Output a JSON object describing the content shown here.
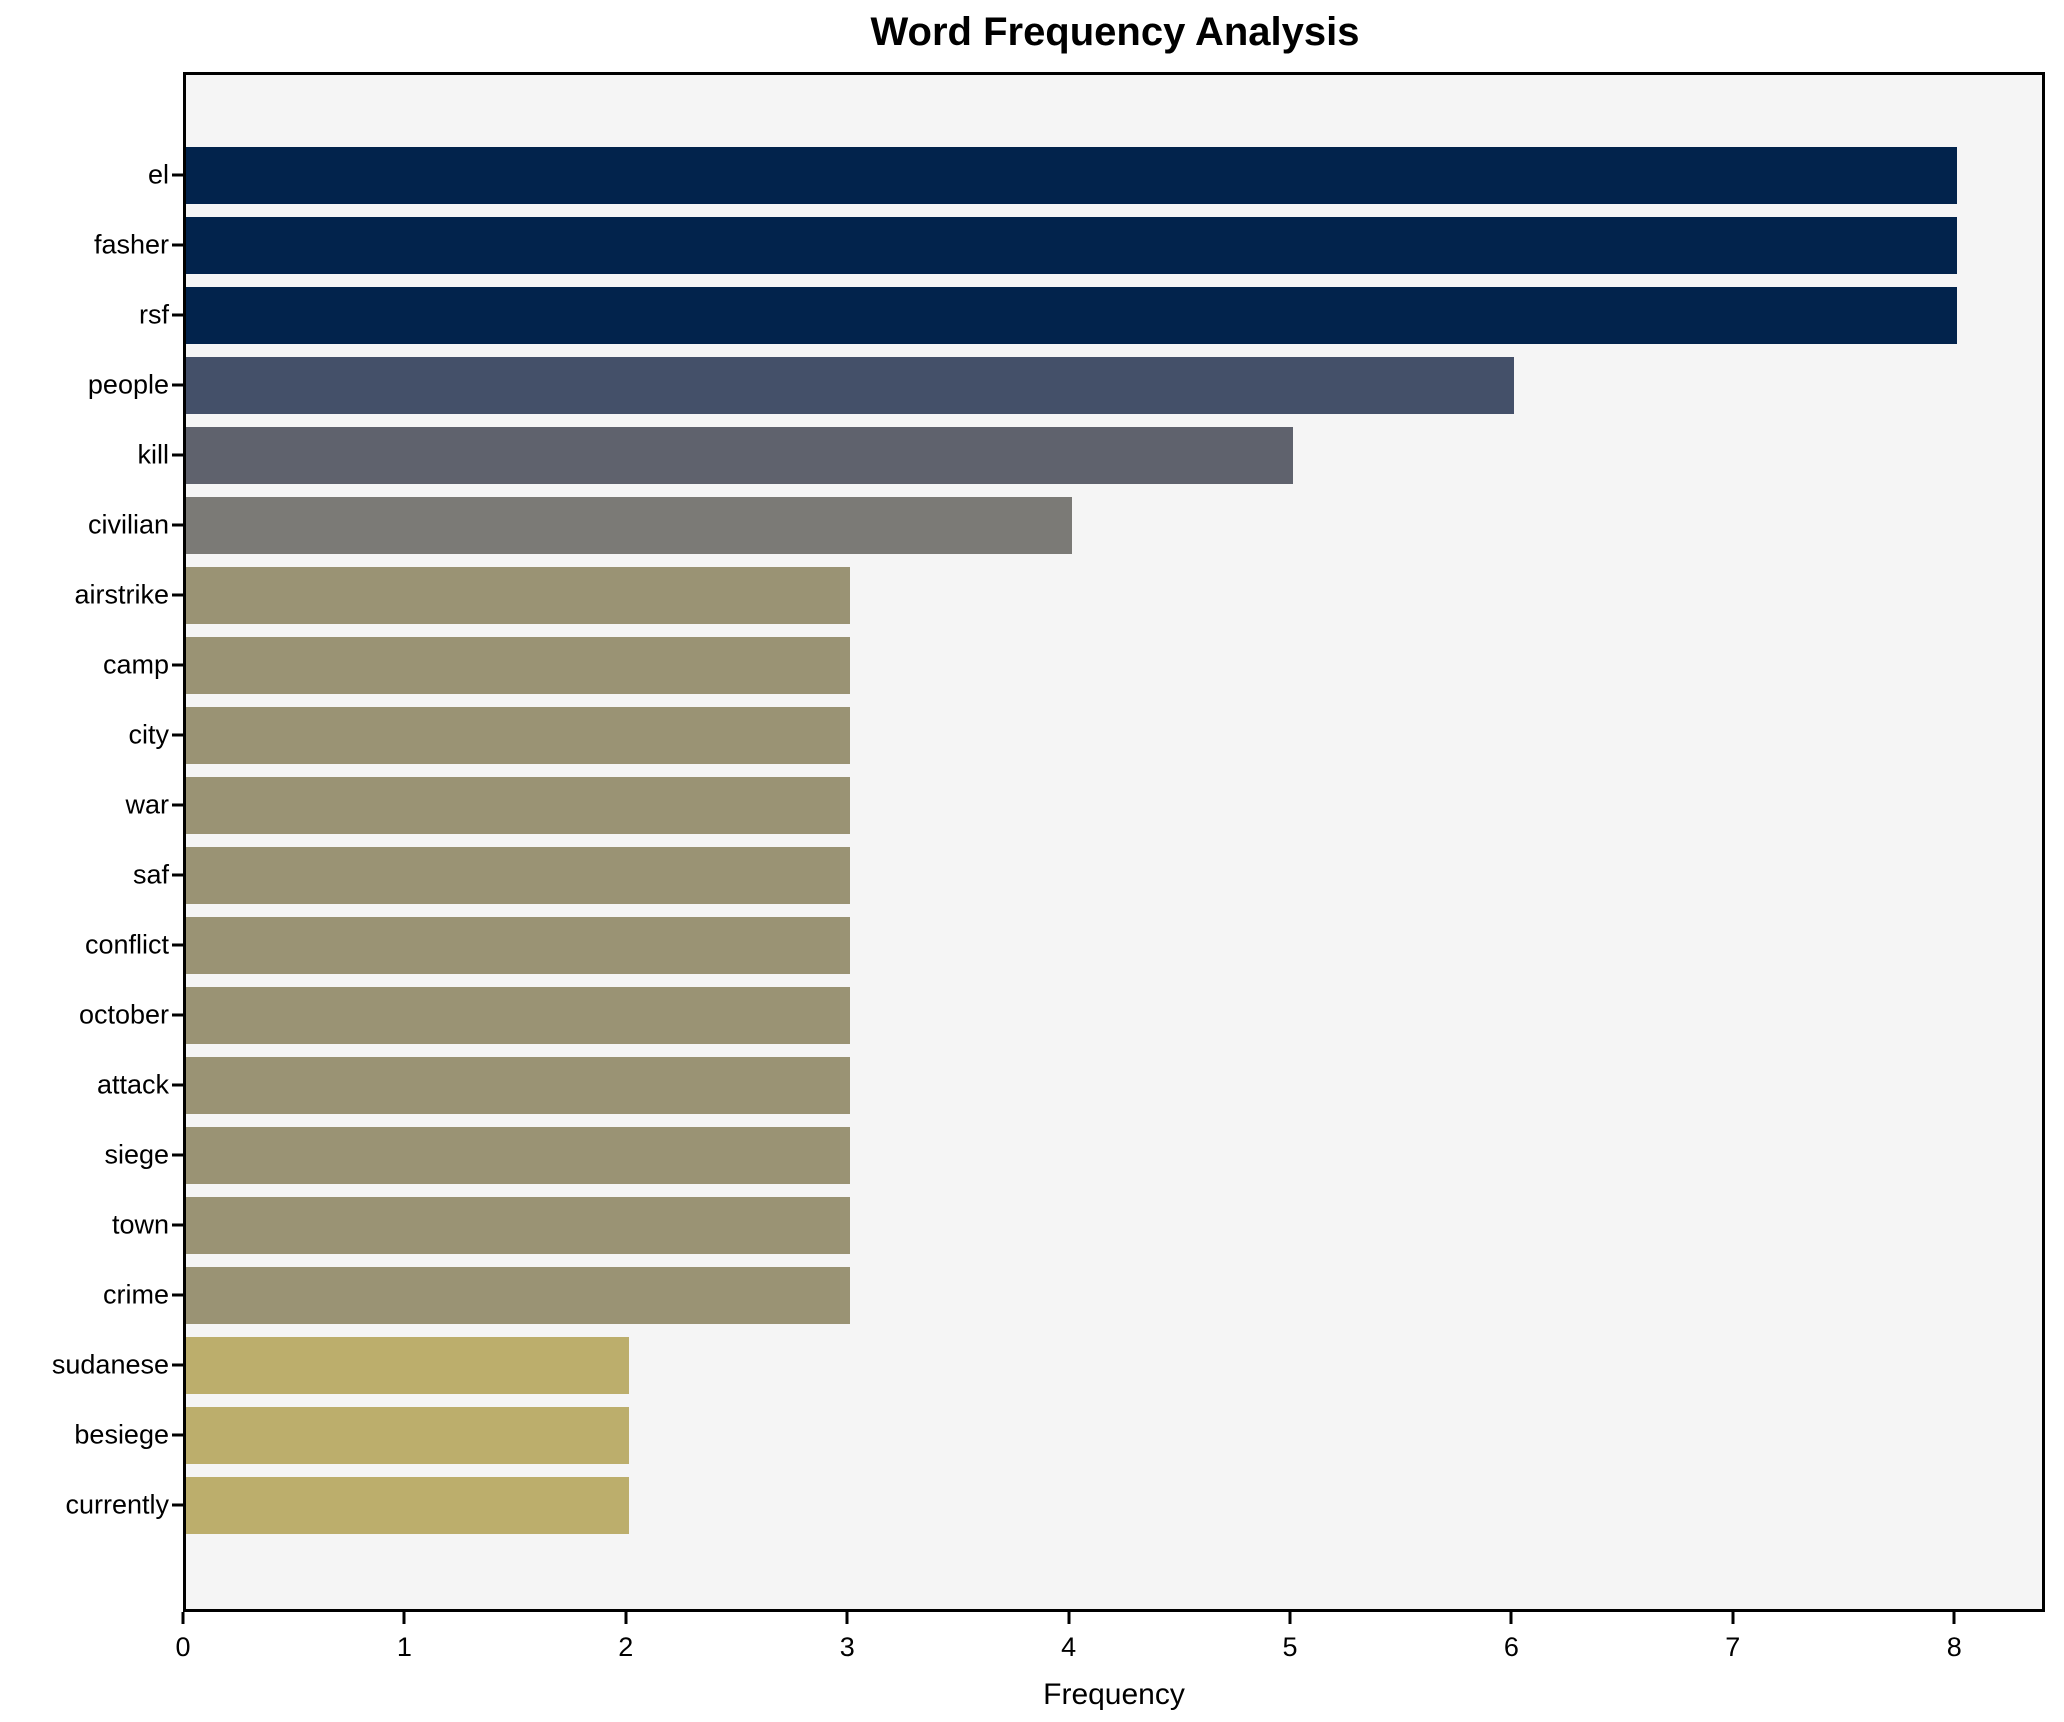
{
  "chart_data": {
    "type": "bar",
    "orientation": "horizontal",
    "title": "Word Frequency Analysis",
    "xlabel": "Frequency",
    "ylabel": "",
    "categories": [
      "el",
      "fasher",
      "rsf",
      "people",
      "kill",
      "civilian",
      "airstrike",
      "camp",
      "city",
      "war",
      "saf",
      "conflict",
      "october",
      "attack",
      "siege",
      "town",
      "crime",
      "sudanese",
      "besiege",
      "currently"
    ],
    "values": [
      8,
      8,
      8,
      6,
      5,
      4,
      3,
      3,
      3,
      3,
      3,
      3,
      3,
      3,
      3,
      3,
      3,
      2,
      2,
      2
    ],
    "bar_colors": [
      "#02234c",
      "#02234c",
      "#02234c",
      "#445069",
      "#5f626d",
      "#7b7a76",
      "#9a9374",
      "#9a9374",
      "#9a9374",
      "#9a9374",
      "#9a9374",
      "#9a9374",
      "#9a9374",
      "#9a9374",
      "#9a9374",
      "#9a9374",
      "#9a9374",
      "#bcae6c",
      "#bcae6c",
      "#bcae6c"
    ],
    "xlim": [
      0,
      8.41
    ],
    "xticks": [
      0,
      1,
      2,
      3,
      4,
      5,
      6,
      7,
      8
    ],
    "grid": false,
    "legend_position": "none",
    "plot_background": "#f5f5f5",
    "frame_color": "#000000"
  }
}
